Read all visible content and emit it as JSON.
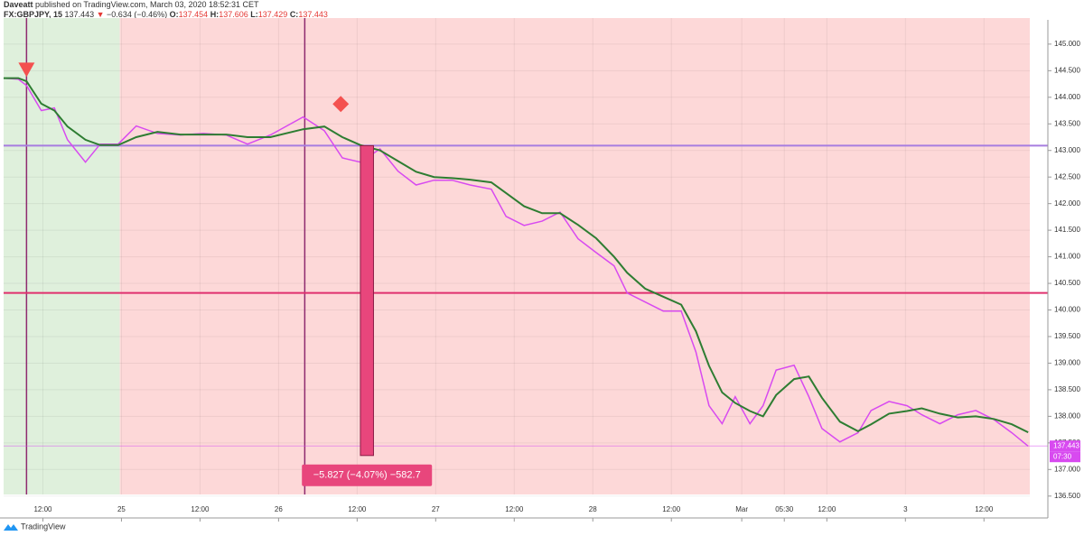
{
  "header": {
    "author": "Daveatt",
    "published": "published on TradingView.com, March 03, 2020 18:52:31 CET",
    "symbol": "FX:GBPJPY, 15",
    "last": "137.443",
    "arrow": "▼",
    "change": "−0.634 (−0.46%)",
    "ohlc": [
      {
        "key": "O:",
        "text": "137.454"
      },
      {
        "key": "H:",
        "text": "137.606"
      },
      {
        "key": "L:",
        "text": "137.429"
      },
      {
        "key": "C:",
        "text": "137.443"
      }
    ]
  },
  "footer": {
    "brand": "TradingView"
  },
  "chart_data": {
    "type": "line",
    "x": [
      0,
      9,
      14,
      23,
      31,
      39,
      50,
      59,
      70,
      81,
      94,
      108,
      122,
      136,
      149,
      163,
      183,
      196,
      207,
      218,
      230,
      241,
      252,
      263,
      274,
      285,
      298,
      307,
      318,
      329,
      340,
      351,
      362,
      373,
      381,
      392,
      403,
      414,
      423,
      431,
      439,
      447,
      456,
      464,
      472,
      483,
      492,
      500,
      511,
      522,
      530,
      541,
      552,
      561,
      572,
      583,
      594,
      605,
      616,
      626
    ],
    "series": [
      {
        "name": "GBPJPY",
        "color": "#d84af0",
        "values": [
          144.36,
          144.34,
          144.22,
          143.75,
          143.8,
          143.2,
          142.78,
          143.12,
          143.12,
          143.46,
          143.32,
          143.29,
          143.32,
          143.29,
          143.12,
          143.29,
          143.63,
          143.37,
          142.86,
          142.78,
          143.03,
          142.61,
          142.35,
          142.44,
          142.44,
          142.35,
          142.27,
          141.76,
          141.59,
          141.67,
          141.84,
          141.34,
          141.08,
          140.83,
          140.32,
          140.15,
          139.98,
          139.98,
          139.21,
          138.2,
          137.86,
          138.37,
          137.86,
          138.2,
          138.87,
          138.96,
          138.37,
          137.77,
          137.52,
          137.69,
          138.11,
          138.28,
          138.2,
          138.03,
          137.86,
          138.03,
          138.11,
          137.94,
          137.69,
          137.44
        ]
      },
      {
        "name": "MA",
        "color": "#2e7d32",
        "values": [
          144.36,
          144.36,
          144.3,
          143.88,
          143.75,
          143.45,
          143.2,
          143.1,
          143.1,
          143.25,
          143.35,
          143.3,
          143.3,
          143.3,
          143.25,
          143.25,
          143.4,
          143.45,
          143.25,
          143.1,
          143.0,
          142.8,
          142.6,
          142.5,
          142.48,
          142.45,
          142.4,
          142.2,
          141.95,
          141.82,
          141.82,
          141.6,
          141.35,
          141.0,
          140.7,
          140.4,
          140.25,
          140.1,
          139.6,
          138.95,
          138.45,
          138.25,
          138.1,
          138.0,
          138.4,
          138.7,
          138.75,
          138.35,
          137.9,
          137.72,
          137.85,
          138.05,
          138.1,
          138.15,
          138.05,
          137.98,
          138.0,
          137.95,
          137.85,
          137.7
        ]
      }
    ],
    "xlim": [
      0,
      627
    ],
    "xticks": [
      {
        "value": 24,
        "label": "12:00"
      },
      {
        "value": 72,
        "label": "25"
      },
      {
        "value": 120,
        "label": "12:00"
      },
      {
        "value": 168,
        "label": "26"
      },
      {
        "value": 216,
        "label": "12:00"
      },
      {
        "value": 264,
        "label": "27"
      },
      {
        "value": 312,
        "label": "12:00"
      },
      {
        "value": 360,
        "label": "28"
      },
      {
        "value": 408,
        "label": "12:00"
      },
      {
        "value": 451,
        "label": "Mar"
      },
      {
        "value": 477,
        "label": "05:30"
      },
      {
        "value": 503,
        "label": "12:00"
      },
      {
        "value": 551,
        "label": "3"
      },
      {
        "value": 599,
        "label": "12:00"
      }
    ],
    "ylim": [
      136.53,
      145.49
    ],
    "yticks": [
      {
        "value": 136.5,
        "label": "136.500"
      },
      {
        "value": 137,
        "label": "137.000"
      },
      {
        "value": 137.5,
        "label": "137.500"
      },
      {
        "value": 138,
        "label": "138.000"
      },
      {
        "value": 138.5,
        "label": "138.500"
      },
      {
        "value": 139,
        "label": "139.000"
      },
      {
        "value": 139.5,
        "label": "139.500"
      },
      {
        "value": 140,
        "label": "140.000"
      },
      {
        "value": 140.5,
        "label": "140.500"
      },
      {
        "value": 141,
        "label": "141.000"
      },
      {
        "value": 141.5,
        "label": "141.500"
      },
      {
        "value": 142,
        "label": "142.000"
      },
      {
        "value": 142.5,
        "label": "142.500"
      },
      {
        "value": 143,
        "label": "143.000"
      },
      {
        "value": 143.5,
        "label": "143.500"
      },
      {
        "value": 144,
        "label": "144.000"
      },
      {
        "value": 144.5,
        "label": "144.500"
      },
      {
        "value": 145,
        "label": "145.000"
      }
    ],
    "grid": true,
    "zones": [
      {
        "from": 0,
        "to": 71,
        "color": "#dff0dc"
      },
      {
        "from": 71,
        "to": 627,
        "color": "#fdd8d8"
      }
    ],
    "hlines": [
      {
        "value": 143.09,
        "color": "#a77de0"
      },
      {
        "value": 140.32,
        "color": "#e0306e"
      }
    ],
    "vlines": [
      {
        "value": 14,
        "color": "#8e2a6e"
      },
      {
        "value": 184,
        "color": "#8e2a6e"
      }
    ],
    "markers": [
      {
        "x": 14,
        "value": 144.38,
        "shape": "triangle",
        "color": "#f4514f"
      },
      {
        "x": 206,
        "value": 143.72,
        "shape": "diamond",
        "color": "#f4514f"
      }
    ],
    "measure": {
      "x": [
        218,
        226
      ],
      "from": 143.09,
      "change": -5.827,
      "label": "−5.827 (−4.07%) −582.7",
      "color": "#e8467c"
    },
    "last_price": {
      "value": 137.443,
      "label": "137.443",
      "countdown": "07:30",
      "color": "#d84af0"
    }
  }
}
